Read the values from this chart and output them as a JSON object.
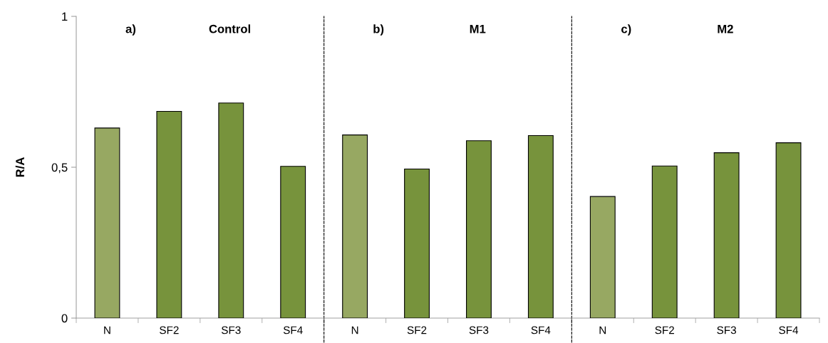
{
  "chart_data": [
    {
      "type": "bar",
      "title": "Control",
      "annotations": [
        "a)"
      ],
      "ylabel": "R/A",
      "categories": [
        "N",
        "SF2",
        "SF3",
        "SF4"
      ],
      "values": [
        0.63,
        0.685,
        0.713,
        0.503
      ],
      "colors": [
        "#97a862",
        "#77933c",
        "#77933c",
        "#77933c"
      ],
      "ylim": [
        0,
        1
      ],
      "yticks": [
        0,
        {
          "value": 0.5,
          "label": "0,5"
        },
        1
      ],
      "grid": false,
      "legend": false
    },
    {
      "type": "bar",
      "title": "M1",
      "annotations": [
        "b)"
      ],
      "categories": [
        "N",
        "SF2",
        "SF3",
        "SF4"
      ],
      "values": [
        0.607,
        0.494,
        0.588,
        0.605
      ],
      "colors": [
        "#97a862",
        "#77933c",
        "#77933c",
        "#77933c"
      ],
      "ylim": [
        0,
        1
      ],
      "tick_labels": "x",
      "grid": false,
      "legend": false
    },
    {
      "type": "bar",
      "title": "M2",
      "annotations": [
        "c)"
      ],
      "categories": [
        "N",
        "SF2",
        "SF3",
        "SF4"
      ],
      "values": [
        0.403,
        0.504,
        0.548,
        0.581
      ],
      "colors": [
        "#97a862",
        "#77933c",
        "#77933c",
        "#77933c"
      ],
      "ylim": [
        0,
        1
      ],
      "tick_labels": "x",
      "grid": false,
      "legend": false
    }
  ]
}
